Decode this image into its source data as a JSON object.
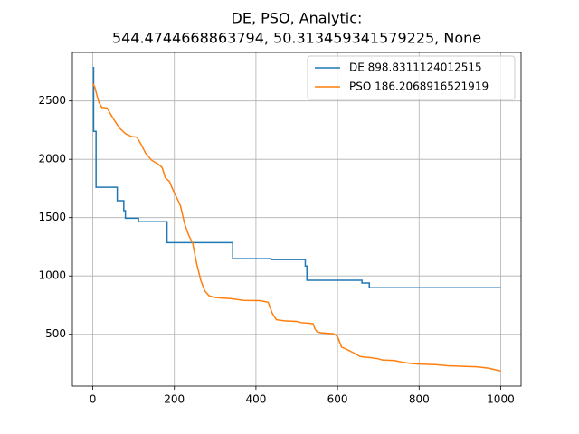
{
  "chart_data": {
    "type": "line",
    "title": [
      "DE, PSO, Analytic:",
      "544.4744668863794, 50.313459341579225, None"
    ],
    "xlim": [
      -50,
      1050
    ],
    "ylim": [
      56,
      2916
    ],
    "xticks": [
      0,
      200,
      400,
      600,
      800,
      1000
    ],
    "yticks": [
      500,
      1000,
      1500,
      2000,
      2500
    ],
    "grid": true,
    "legend": "upper right",
    "series": [
      {
        "name": "DE 898.8311124012515",
        "color": "#1f77b4",
        "x": [
          0,
          2,
          2,
          8,
          8,
          60,
          60,
          76,
          76,
          80,
          80,
          112,
          112,
          182,
          182,
          343,
          343,
          437,
          437,
          521,
          521,
          525,
          525,
          660,
          660,
          678,
          678,
          1000
        ],
        "values": [
          2786,
          2786,
          2240,
          2240,
          1760,
          1760,
          1645,
          1645,
          1560,
          1560,
          1495,
          1495,
          1465,
          1465,
          1285,
          1285,
          1148,
          1148,
          1140,
          1140,
          1085,
          1085,
          963,
          963,
          940,
          940,
          900,
          899
        ]
      },
      {
        "name": "PSO 186.2068916521919",
        "color": "#ff7f0e",
        "x": [
          0,
          5,
          10,
          15,
          22,
          35,
          50,
          65,
          80,
          95,
          108,
          115,
          130,
          145,
          160,
          170,
          178,
          188,
          195,
          210,
          215,
          225,
          235,
          245,
          255,
          265,
          275,
          285,
          300,
          340,
          370,
          410,
          430,
          440,
          450,
          470,
          500,
          510,
          530,
          540,
          545,
          550,
          560,
          590,
          600,
          610,
          620,
          640,
          655,
          680,
          700,
          710,
          740,
          760,
          780,
          800,
          840,
          870,
          940,
          970,
          1000
        ],
        "values": [
          2650,
          2620,
          2550,
          2490,
          2445,
          2440,
          2350,
          2270,
          2220,
          2195,
          2190,
          2150,
          2050,
          1990,
          1960,
          1930,
          1840,
          1810,
          1750,
          1640,
          1600,
          1450,
          1350,
          1280,
          1100,
          960,
          870,
          830,
          815,
          805,
          790,
          788,
          775,
          680,
          625,
          615,
          610,
          600,
          595,
          590,
          545,
          520,
          512,
          505,
          480,
          390,
          375,
          340,
          310,
          300,
          290,
          280,
          275,
          260,
          250,
          245,
          240,
          230,
          222,
          210,
          186
        ]
      }
    ]
  }
}
